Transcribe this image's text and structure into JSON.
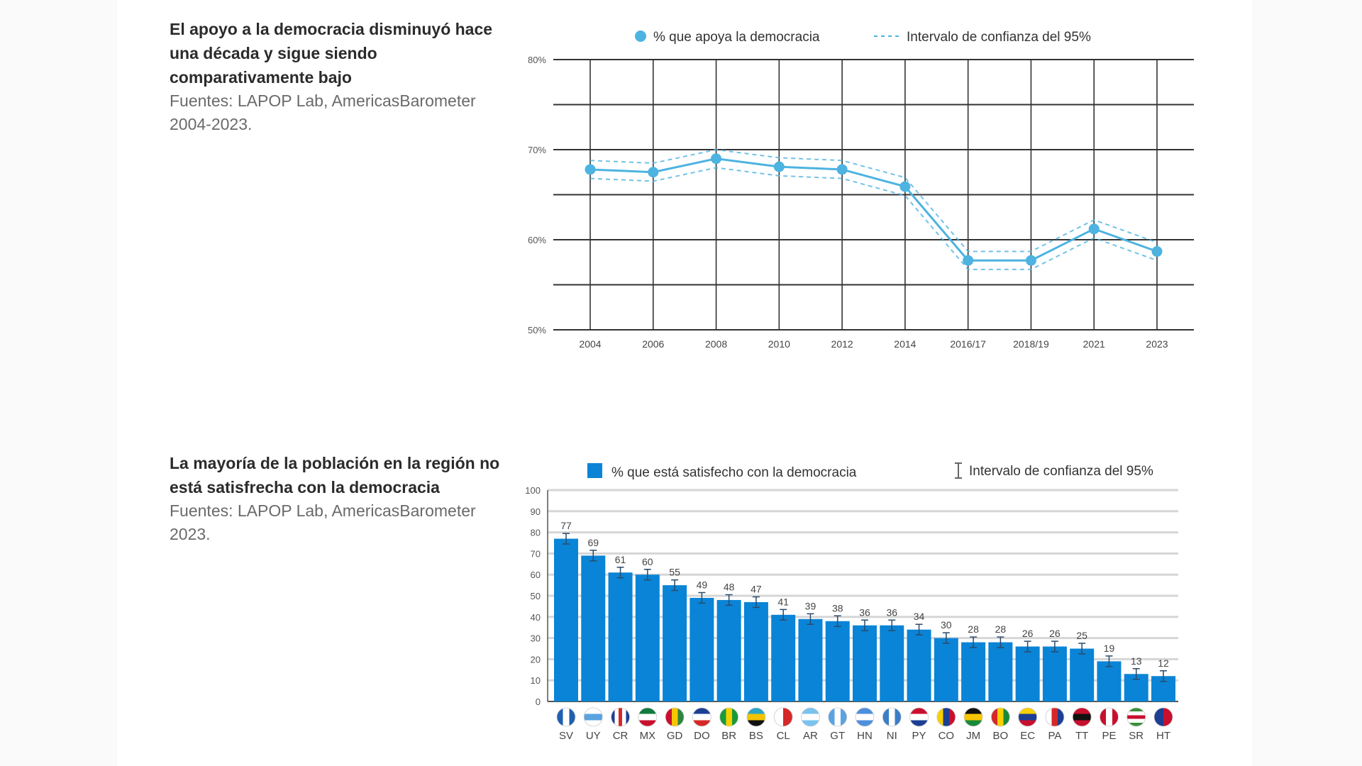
{
  "chart_data": [
    {
      "type": "line",
      "title": "El apoyo a la democracia disminuyó hace una década y sigue siendo comparativamente bajo",
      "source": "Fuentes: LAPOP Lab, AmericasBarometer 2004-2023.",
      "legend": [
        "% que apoya la democracia",
        "Intervalo de confianza del 95%"
      ],
      "legend_placement": "top",
      "categories": [
        "2004",
        "2006",
        "2008",
        "2010",
        "2012",
        "2014",
        "2016/17",
        "2018/19",
        "2021",
        "2023"
      ],
      "series": [
        {
          "name": "% que apoya la democracia",
          "values": [
            67.8,
            67.5,
            69.0,
            68.1,
            67.8,
            65.9,
            57.7,
            57.7,
            61.2,
            58.7
          ]
        },
        {
          "name": "lower",
          "values": [
            66.8,
            66.5,
            68.0,
            67.1,
            66.8,
            64.9,
            56.7,
            56.7,
            60.2,
            57.7
          ]
        },
        {
          "name": "upper",
          "values": [
            68.8,
            68.5,
            70.0,
            69.1,
            68.8,
            66.9,
            58.7,
            58.7,
            62.2,
            59.7
          ]
        }
      ],
      "ylim": [
        50,
        80
      ],
      "yticks": [
        "80%",
        "70%",
        "60%",
        "50%"
      ],
      "grid": true,
      "color": "#4db3e0"
    },
    {
      "type": "bar",
      "title": "La mayoría de la población en la región no está satisfrecha con la democracia",
      "source": "Fuentes: LAPOP Lab, AmericasBarometer 2023.",
      "legend": [
        "% que está satisfecho con la democracia",
        "Intervalo de confianza del 95%"
      ],
      "legend_placement": "top",
      "categories": [
        "SV",
        "UY",
        "CR",
        "MX",
        "GD",
        "DO",
        "BR",
        "BS",
        "CL",
        "AR",
        "GT",
        "HN",
        "NI",
        "PY",
        "CO",
        "JM",
        "BO",
        "EC",
        "PA",
        "TT",
        "PE",
        "SR",
        "HT"
      ],
      "values": [
        77,
        69,
        61,
        60,
        55,
        49,
        48,
        47,
        41,
        39,
        38,
        36,
        36,
        34,
        30,
        28,
        28,
        26,
        26,
        25,
        19,
        13,
        12
      ],
      "ci": 2.5,
      "ylim": [
        0,
        100
      ],
      "yticks": [
        "0",
        "10",
        "20",
        "30",
        "40",
        "50",
        "60",
        "70",
        "80",
        "90",
        "100"
      ],
      "grid": true,
      "color": "#0a84d6",
      "flags": [
        [
          "#1f5fb0",
          "#fff",
          "#1f5fb0"
        ],
        [
          "#fff",
          "#5aa3e0",
          "#fff"
        ],
        [
          "#1c3f94",
          "#fff",
          "#d62828",
          "#fff",
          "#1c3f94"
        ],
        [
          "#127a3e",
          "#fff",
          "#c8102e"
        ],
        [
          "#c8102e",
          "#f7c600",
          "#2e8540"
        ],
        [
          "#1c3f94",
          "#fff",
          "#d62828"
        ],
        [
          "#1a9a3a",
          "#f7d000",
          "#1a9a3a"
        ],
        [
          "#2aa6c6",
          "#f2c400",
          "#111"
        ],
        [
          "#fff",
          "#d62828"
        ],
        [
          "#7ac3ef",
          "#fff",
          "#7ac3ef"
        ],
        [
          "#5aa3e0",
          "#fff",
          "#5aa3e0"
        ],
        [
          "#4d8fdc",
          "#fff",
          "#4d8fdc"
        ],
        [
          "#3b7ec8",
          "#fff",
          "#3b7ec8"
        ],
        [
          "#c8102e",
          "#fff",
          "#1c3f94"
        ],
        [
          "#f7d000",
          "#1c3f94",
          "#c8102e"
        ],
        [
          "#111",
          "#f7c600",
          "#1a8a3a"
        ],
        [
          "#d62828",
          "#f7d000",
          "#1a8a3a"
        ],
        [
          "#f7d000",
          "#1c3f94",
          "#c8102e"
        ],
        [
          "#fff",
          "#d62828",
          "#1c3f94"
        ],
        [
          "#c8102e",
          "#111",
          "#c8102e"
        ],
        [
          "#c8102e",
          "#fff",
          "#c8102e"
        ],
        [
          "#3a8f3a",
          "#fff",
          "#c8102e",
          "#fff",
          "#3a8f3a"
        ],
        [
          "#1c3f94",
          "#c8102e"
        ]
      ]
    }
  ]
}
